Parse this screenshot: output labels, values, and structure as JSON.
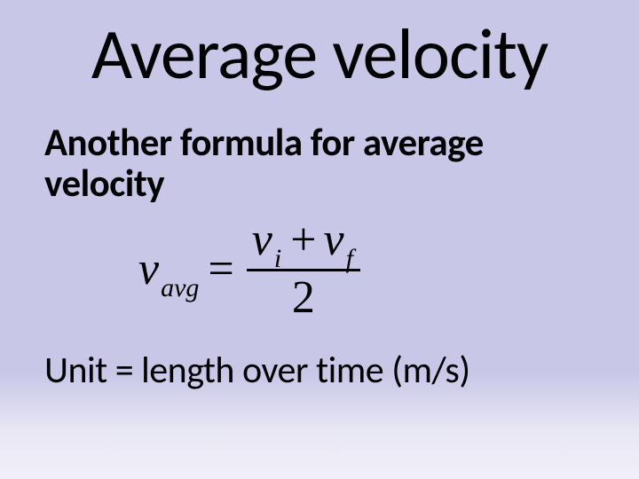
{
  "slide": {
    "background_gradient": [
      "#c8c7e8",
      "#c8c7e8",
      "#d8d7ed",
      "#e8e7f3",
      "#f0effa"
    ],
    "text_color": "#000000",
    "title": "Average velocity",
    "subtitle": "Another formula for average velocity",
    "formula": {
      "lhs_var": "v",
      "lhs_sub": "avg",
      "eq": "=",
      "num_term1_var": "v",
      "num_term1_sub": "i",
      "num_plus": "+",
      "num_term2_var": "v",
      "num_term2_sub": "f",
      "den": "2"
    },
    "unit_line": "Unit = length over time (m/s)",
    "fonts": {
      "title_family": "Calibri",
      "formula_family": "Times New Roman",
      "title_size_pt": 60,
      "subtitle_size_pt": 32,
      "formula_size_pt": 40,
      "unit_size_pt": 32
    }
  }
}
